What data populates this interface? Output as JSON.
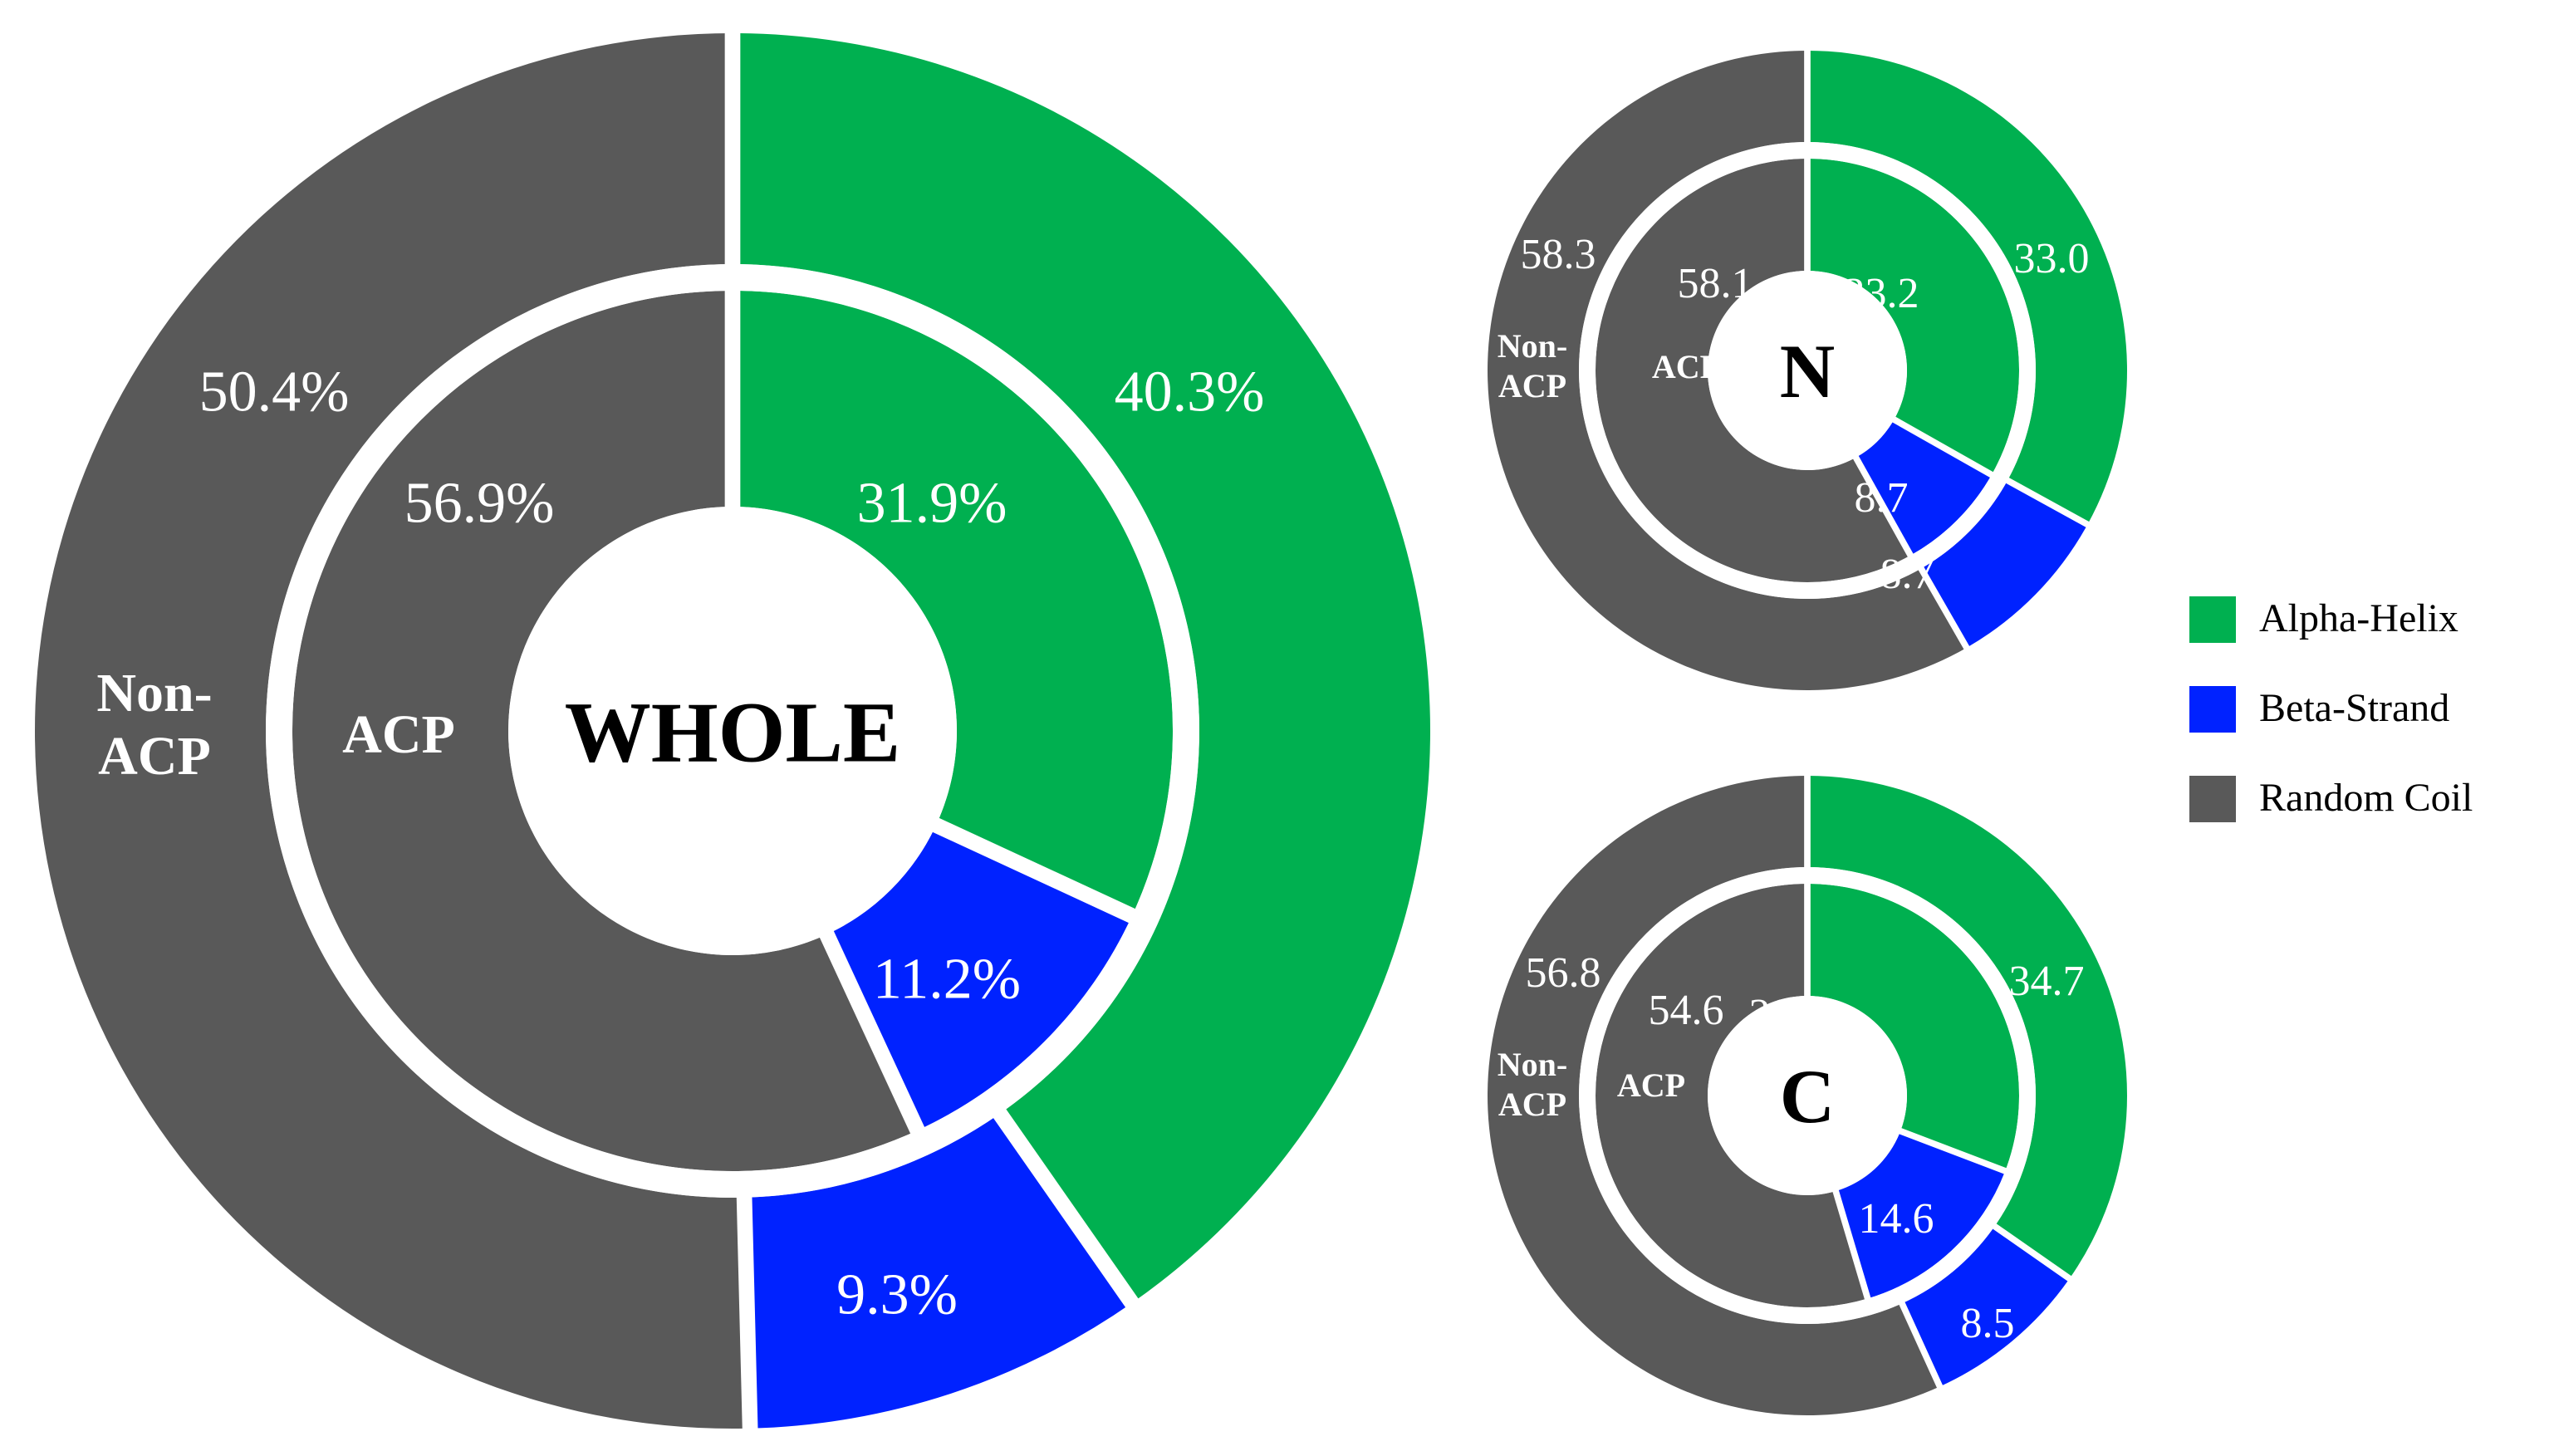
{
  "colors": {
    "Alpha-Helix": "#00b050",
    "Beta-Strand": "#0022ff",
    "Random Coil": "#595959",
    "background": "#ffffff"
  },
  "legend": {
    "placement": "right",
    "items": [
      "Alpha-Helix",
      "Beta-Strand",
      "Random Coil"
    ]
  },
  "chart_data": [
    {
      "type": "pie",
      "center_label": "WHOLE",
      "categories": [
        "Alpha-Helix",
        "Beta-Strand",
        "Random Coil"
      ],
      "series": [
        {
          "name": "ACP",
          "values": [
            31.9,
            11.2,
            56.9
          ],
          "labels": [
            "31.9%",
            "11.2%",
            "56.9%"
          ]
        },
        {
          "name": "Non-ACP",
          "values": [
            40.3,
            9.3,
            50.4
          ],
          "labels": [
            "40.3%",
            "9.3%",
            "50.4%"
          ]
        }
      ]
    },
    {
      "type": "pie",
      "center_label": "N",
      "categories": [
        "Alpha-Helix",
        "Beta-Strand",
        "Random Coil"
      ],
      "series": [
        {
          "name": "ACP",
          "values": [
            33.2,
            8.7,
            58.1
          ],
          "labels": [
            "33.2",
            "8.7",
            "58.1"
          ]
        },
        {
          "name": "Non-ACP",
          "values": [
            33.0,
            8.7,
            58.3
          ],
          "labels": [
            "33.0",
            "8.7",
            "58.3"
          ]
        }
      ]
    },
    {
      "type": "pie",
      "center_label": "C",
      "categories": [
        "Alpha-Helix",
        "Beta-Strand",
        "Random Coil"
      ],
      "series": [
        {
          "name": "ACP",
          "values": [
            30.8,
            14.6,
            54.6
          ],
          "labels": [
            "30.8",
            "14.6",
            "54.6"
          ]
        },
        {
          "name": "Non-ACP",
          "values": [
            34.7,
            8.5,
            56.8
          ],
          "labels": [
            "34.7",
            "8.5",
            "56.8"
          ]
        }
      ]
    }
  ]
}
